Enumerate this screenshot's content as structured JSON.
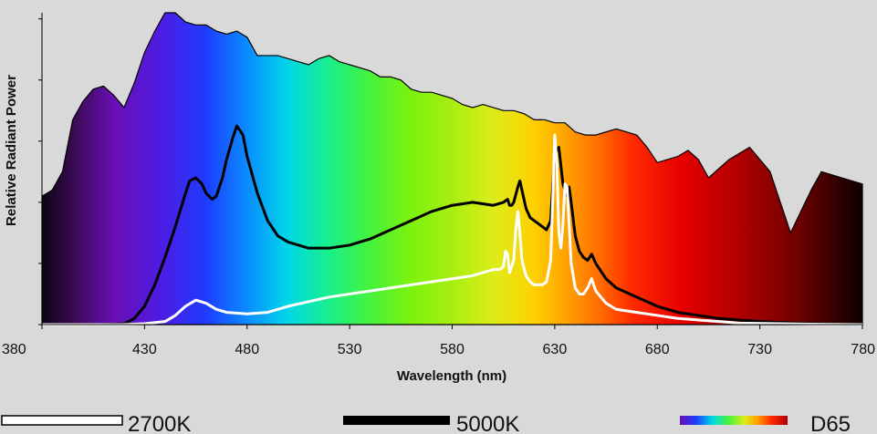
{
  "chart_data": {
    "type": "area",
    "xlabel": "Wavelength (nm)",
    "ylabel": "Relative Radiant Power",
    "xlim": [
      380,
      780
    ],
    "x_ticks": [
      380,
      430,
      480,
      530,
      580,
      630,
      680,
      730,
      780
    ],
    "y_ticks": [
      0,
      0.2,
      0.4,
      0.6,
      0.8,
      1.0
    ],
    "ylim": [
      0,
      1.02
    ],
    "grid": false,
    "legend_position": "bottom",
    "series": [
      {
        "name": "D65",
        "style": "spectrum-fill",
        "x": [
          380,
          385,
          390,
          395,
          400,
          405,
          410,
          415,
          420,
          425,
          430,
          435,
          440,
          445,
          450,
          455,
          460,
          465,
          470,
          475,
          480,
          485,
          490,
          495,
          500,
          505,
          510,
          515,
          520,
          525,
          530,
          535,
          540,
          545,
          550,
          555,
          560,
          565,
          570,
          575,
          580,
          585,
          590,
          595,
          600,
          605,
          610,
          615,
          620,
          625,
          630,
          635,
          640,
          645,
          650,
          655,
          660,
          665,
          670,
          675,
          680,
          685,
          690,
          695,
          700,
          705,
          710,
          715,
          720,
          725,
          730,
          735,
          740,
          745,
          750,
          755,
          760,
          765,
          770,
          775,
          780
        ],
        "values": [
          0.42,
          0.44,
          0.5,
          0.67,
          0.73,
          0.77,
          0.78,
          0.75,
          0.71,
          0.79,
          0.89,
          0.96,
          1.02,
          1.02,
          0.99,
          0.98,
          0.98,
          0.96,
          0.95,
          0.96,
          0.94,
          0.88,
          0.88,
          0.88,
          0.87,
          0.86,
          0.85,
          0.87,
          0.88,
          0.86,
          0.85,
          0.84,
          0.83,
          0.81,
          0.81,
          0.8,
          0.77,
          0.76,
          0.76,
          0.75,
          0.74,
          0.72,
          0.71,
          0.72,
          0.71,
          0.7,
          0.7,
          0.69,
          0.67,
          0.67,
          0.66,
          0.66,
          0.63,
          0.62,
          0.62,
          0.63,
          0.64,
          0.63,
          0.62,
          0.58,
          0.53,
          0.54,
          0.55,
          0.57,
          0.54,
          0.48,
          0.51,
          0.54,
          0.56,
          0.58,
          0.54,
          0.5,
          0.4,
          0.3,
          0.37,
          0.44,
          0.5,
          0.49,
          0.48,
          0.47,
          0.46
        ]
      },
      {
        "name": "5000K",
        "style": "black-line",
        "x": [
          380,
          390,
          400,
          410,
          420,
          425,
          430,
          435,
          440,
          445,
          450,
          452,
          455,
          458,
          460,
          463,
          465,
          468,
          470,
          473,
          475,
          478,
          480,
          485,
          490,
          495,
          500,
          510,
          520,
          530,
          540,
          550,
          560,
          570,
          580,
          590,
          600,
          605,
          607,
          608,
          609,
          610,
          612,
          613,
          614,
          616,
          618,
          620,
          622,
          624,
          626,
          628,
          630,
          632,
          634,
          636,
          637,
          638,
          640,
          642,
          644,
          646,
          648,
          650,
          655,
          660,
          670,
          680,
          690,
          700,
          710,
          720,
          730,
          740,
          750,
          760,
          770,
          780
        ],
        "values": [
          0.0,
          0.0,
          0.0,
          0.0,
          0.003,
          0.02,
          0.06,
          0.13,
          0.22,
          0.32,
          0.43,
          0.47,
          0.48,
          0.46,
          0.43,
          0.41,
          0.42,
          0.48,
          0.54,
          0.61,
          0.65,
          0.62,
          0.55,
          0.43,
          0.34,
          0.29,
          0.27,
          0.25,
          0.25,
          0.26,
          0.28,
          0.31,
          0.34,
          0.37,
          0.39,
          0.4,
          0.39,
          0.4,
          0.41,
          0.39,
          0.39,
          0.4,
          0.45,
          0.47,
          0.44,
          0.38,
          0.35,
          0.34,
          0.33,
          0.32,
          0.31,
          0.34,
          0.56,
          0.58,
          0.46,
          0.42,
          0.45,
          0.4,
          0.29,
          0.24,
          0.22,
          0.21,
          0.23,
          0.2,
          0.15,
          0.12,
          0.09,
          0.06,
          0.04,
          0.03,
          0.02,
          0.015,
          0.01,
          0.007,
          0.005,
          0.003,
          0.001,
          0.0
        ]
      },
      {
        "name": "2700K",
        "style": "white-line",
        "x": [
          380,
          420,
          430,
          440,
          445,
          450,
          455,
          460,
          465,
          470,
          480,
          490,
          500,
          520,
          540,
          560,
          580,
          590,
          595,
          600,
          603,
          605,
          606,
          607,
          608,
          609,
          610,
          611,
          612,
          613,
          614,
          616,
          618,
          620,
          622,
          624,
          626,
          628,
          629,
          630,
          631,
          632,
          633,
          634,
          635,
          636,
          637,
          638,
          640,
          642,
          644,
          646,
          648,
          650,
          655,
          660,
          670,
          680,
          690,
          700,
          710,
          720,
          740,
          760,
          780
        ],
        "values": [
          0.0,
          0.0,
          0.003,
          0.01,
          0.03,
          0.06,
          0.08,
          0.07,
          0.05,
          0.04,
          0.035,
          0.04,
          0.06,
          0.09,
          0.11,
          0.13,
          0.15,
          0.16,
          0.17,
          0.18,
          0.18,
          0.19,
          0.24,
          0.23,
          0.17,
          0.19,
          0.21,
          0.31,
          0.37,
          0.3,
          0.21,
          0.16,
          0.14,
          0.13,
          0.13,
          0.13,
          0.14,
          0.21,
          0.4,
          0.62,
          0.53,
          0.3,
          0.25,
          0.33,
          0.46,
          0.45,
          0.33,
          0.2,
          0.12,
          0.1,
          0.1,
          0.12,
          0.15,
          0.11,
          0.07,
          0.05,
          0.04,
          0.03,
          0.02,
          0.015,
          0.01,
          0.005,
          0.003,
          0.001,
          0.0
        ]
      }
    ]
  },
  "legend": [
    {
      "label": "2700K"
    },
    {
      "label": "5000K"
    },
    {
      "label": "D65"
    }
  ]
}
